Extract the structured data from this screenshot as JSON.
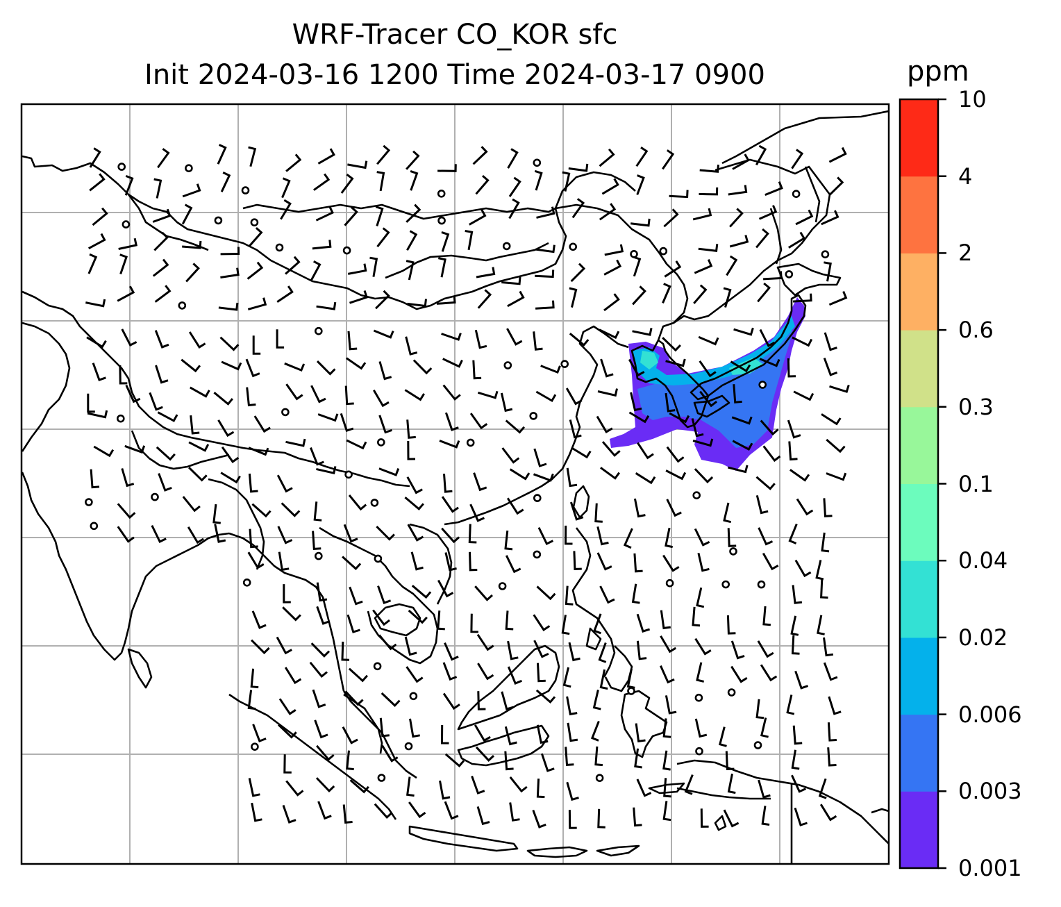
{
  "title": {
    "line1": "WRF-Tracer CO_KOR sfc",
    "line2": "Init 2024-03-16 1200 Time 2024-03-17 0900"
  },
  "colorbar": {
    "unit": "ppm",
    "levels": [
      "0.001",
      "0.003",
      "0.006",
      "0.02",
      "0.04",
      "0.1",
      "0.3",
      "0.6",
      "2",
      "4",
      "10"
    ],
    "colors": [
      "#6a2cf5",
      "#3575f3",
      "#04b1eb",
      "#33e1d4",
      "#6cfcbd",
      "#98f79a",
      "#d0e189",
      "#feb063",
      "#fe7340",
      "#fe2a17"
    ]
  },
  "map": {
    "graticule": "gray",
    "plume_colors": [
      "#6a2cf5",
      "#3575f3",
      "#04b1eb",
      "#33e1d4"
    ]
  }
}
